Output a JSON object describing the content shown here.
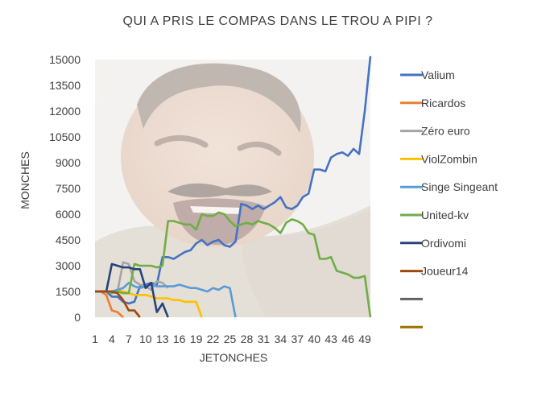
{
  "chart_data": {
    "type": "line",
    "title": "QUI A PRIS LE COMPAS DANS LE TROU A PIPI ?",
    "xlabel": "JETONCHES",
    "ylabel": "MONCHES",
    "ylim": [
      0,
      15000
    ],
    "yticks": [
      0,
      1500,
      3000,
      4500,
      6000,
      7500,
      9000,
      10500,
      12000,
      13500,
      15000
    ],
    "xlim": [
      1,
      50
    ],
    "xticks": [
      1,
      4,
      7,
      10,
      13,
      16,
      19,
      22,
      25,
      28,
      31,
      34,
      37,
      40,
      43,
      46,
      49
    ],
    "grid": false,
    "legend_position": "right",
    "background_image": "photo of a laughing man",
    "series": [
      {
        "name": "Valium",
        "color": "#4472c4",
        "x": [
          1,
          2,
          3,
          4,
          5,
          6,
          7,
          8,
          9,
          10,
          11,
          12,
          13,
          14,
          15,
          16,
          17,
          18,
          19,
          20,
          21,
          22,
          23,
          24,
          25,
          26,
          27,
          28,
          29,
          30,
          31,
          32,
          33,
          34,
          35,
          36,
          37,
          38,
          39,
          40,
          41,
          42,
          43,
          44,
          45,
          46,
          47,
          48,
          49,
          50
        ],
        "values": [
          1500,
          1500,
          1500,
          1200,
          1200,
          900,
          800,
          900,
          1800,
          1900,
          2000,
          1900,
          3500,
          3500,
          3400,
          3600,
          3800,
          3900,
          4300,
          4500,
          4200,
          4400,
          4500,
          4200,
          4100,
          4400,
          6600,
          6500,
          6300,
          6500,
          6300,
          6500,
          6700,
          7000,
          6400,
          6300,
          6500,
          7000,
          7200,
          8600,
          8600,
          8500,
          9300,
          9500,
          9600,
          9400,
          9800,
          9500,
          12000,
          15200
        ]
      },
      {
        "name": "Ricardos",
        "color": "#ed7d31",
        "x": [
          1,
          2,
          3,
          4,
          5,
          6
        ],
        "values": [
          1500,
          1500,
          1300,
          400,
          300,
          0
        ]
      },
      {
        "name": "Zéro euro",
        "color": "#a5a5a5",
        "x": [
          1,
          2,
          3,
          4,
          5,
          6,
          7,
          8,
          9,
          10,
          11,
          12,
          13,
          14
        ],
        "values": [
          1500,
          1500,
          1500,
          1500,
          1500,
          3200,
          3100,
          2100,
          1900,
          1800,
          1600,
          2100,
          2000,
          1700
        ]
      },
      {
        "name": "ViolZombin",
        "color": "#ffc000",
        "x": [
          1,
          2,
          3,
          4,
          5,
          6,
          7,
          8,
          9,
          10,
          11,
          12,
          13,
          14,
          15,
          16,
          17,
          18,
          19,
          20
        ],
        "values": [
          1500,
          1500,
          1500,
          1500,
          1600,
          1500,
          1400,
          1300,
          1300,
          1300,
          1200,
          1100,
          1100,
          1100,
          1000,
          1000,
          900,
          900,
          900,
          0
        ]
      },
      {
        "name": "Singe Singeant",
        "color": "#5b9bd5",
        "x": [
          1,
          2,
          3,
          4,
          5,
          6,
          7,
          8,
          9,
          10,
          11,
          12,
          13,
          14,
          15,
          16,
          17,
          18,
          19,
          20,
          21,
          22,
          23,
          24,
          25,
          26
        ],
        "values": [
          1500,
          1500,
          1500,
          1500,
          1600,
          1700,
          2000,
          1800,
          1700,
          1800,
          1900,
          1800,
          1800,
          1800,
          1800,
          1900,
          1800,
          1700,
          1700,
          1600,
          1500,
          1700,
          1600,
          1800,
          1700,
          0
        ]
      },
      {
        "name": "United-kv",
        "color": "#70ad47",
        "x": [
          1,
          2,
          3,
          4,
          5,
          6,
          7,
          8,
          9,
          10,
          11,
          12,
          13,
          14,
          15,
          16,
          17,
          18,
          19,
          20,
          21,
          22,
          23,
          24,
          25,
          26,
          27,
          28,
          29,
          30,
          31,
          32,
          33,
          34,
          35,
          36,
          37,
          38,
          39,
          40,
          41,
          42,
          43,
          44,
          45,
          46,
          47,
          48,
          49,
          50
        ],
        "values": [
          1500,
          1500,
          1500,
          1400,
          1500,
          1400,
          1400,
          3100,
          3000,
          3000,
          3000,
          2900,
          3000,
          5600,
          5600,
          5500,
          5400,
          5400,
          5100,
          6000,
          5900,
          5900,
          6100,
          6000,
          5600,
          5300,
          5400,
          5500,
          5400,
          5600,
          5500,
          5400,
          5200,
          4900,
          5500,
          5700,
          5600,
          5400,
          4900,
          4800,
          3400,
          3400,
          3500,
          2700,
          2600,
          2500,
          2300,
          2300,
          2400,
          0
        ]
      },
      {
        "name": "Ordivomi",
        "color": "#264478",
        "x": [
          1,
          2,
          3,
          4,
          5,
          6,
          7,
          8,
          9,
          10,
          11,
          12,
          13,
          14
        ],
        "values": [
          1500,
          1500,
          1500,
          3100,
          3000,
          2900,
          2900,
          2800,
          2800,
          1700,
          2000,
          300,
          800,
          0
        ]
      },
      {
        "name": "Joueur14",
        "color": "#9e480e",
        "x": [
          1,
          2,
          3,
          4,
          5,
          6,
          7,
          8,
          9
        ],
        "values": [
          1500,
          1500,
          1500,
          1500,
          1400,
          1000,
          400,
          400,
          0
        ]
      },
      {
        "color": "#636363",
        "x": [],
        "values": []
      },
      {
        "color": "#997300",
        "x": [],
        "values": []
      }
    ]
  }
}
